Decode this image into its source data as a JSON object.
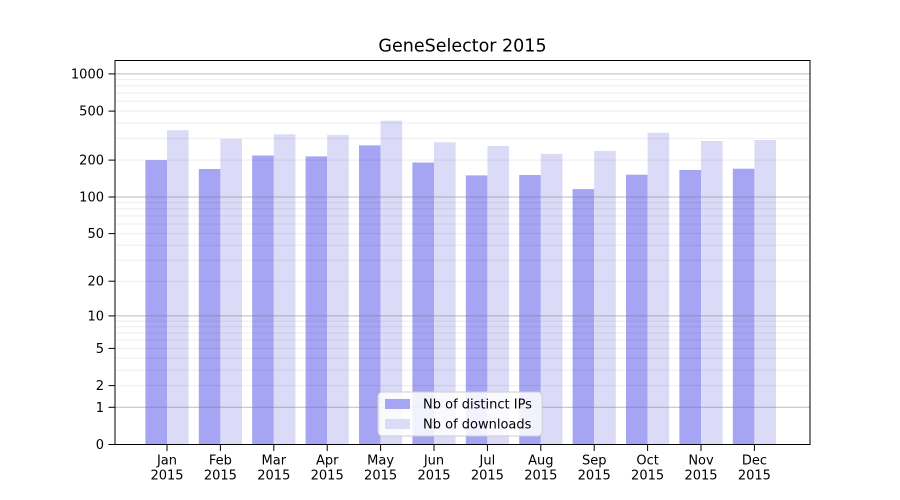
{
  "figure": {
    "title": "GeneSelector 2015"
  },
  "chart_data": {
    "type": "bar",
    "title": "GeneSelector 2015",
    "categories": [
      "Jan",
      "Feb",
      "Mar",
      "Apr",
      "May",
      "Jun",
      "Jul",
      "Aug",
      "Sep",
      "Oct",
      "Nov",
      "Dec"
    ],
    "year_label": "2015",
    "series": [
      {
        "name": "Nb of distinct IPs",
        "color": "#a5a5f3",
        "values": [
          200,
          169,
          218,
          214,
          263,
          191,
          150,
          151,
          116,
          152,
          166,
          170
        ]
      },
      {
        "name": "Nb of downloads",
        "color": "#dbdbf8",
        "values": [
          350,
          297,
          324,
          320,
          418,
          279,
          260,
          225,
          237,
          334,
          286,
          291
        ]
      }
    ],
    "y_scale": "log10(1+v)",
    "ylim": [
      0,
      1285
    ],
    "y_axis_ticks": [
      1000,
      500,
      200,
      100,
      50,
      20,
      10,
      5,
      2,
      1,
      0
    ],
    "y_tick_labels": [
      "1000",
      "500",
      "200",
      "100",
      "50",
      "20",
      "10",
      "5",
      "2",
      "1",
      "0"
    ],
    "y_major_grid": [
      1,
      10,
      100,
      1000
    ],
    "y_minor_grid": [
      2,
      3,
      4,
      5,
      6,
      7,
      8,
      9,
      20,
      30,
      40,
      50,
      60,
      70,
      80,
      90,
      200,
      300,
      400,
      500,
      600,
      700,
      800,
      900
    ],
    "grid": "both, drawn over bars",
    "legend_position": "lower center",
    "colors": {
      "major_grid": "#777777",
      "minor_grid": "#000000",
      "axis": "#000000",
      "legend_border": "#cccccc",
      "legend_background": "rgba(255,255,255,0.85)"
    }
  }
}
